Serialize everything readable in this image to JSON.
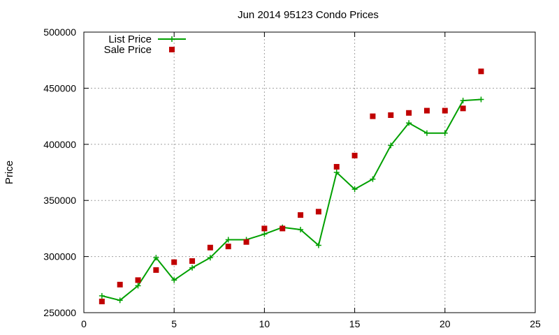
{
  "chart_data": {
    "type": "line",
    "title": "Jun 2014 95123 Condo Prices",
    "xlabel": "",
    "ylabel": "Price",
    "xlim": [
      0,
      25
    ],
    "ylim": [
      250000,
      500000
    ],
    "xticks": [
      0,
      5,
      10,
      15,
      20,
      25
    ],
    "yticks": [
      250000,
      300000,
      350000,
      400000,
      450000,
      500000
    ],
    "grid": true,
    "legend_position": "top-left",
    "series": [
      {
        "name": "List Price",
        "style": "line-plus",
        "color": "#00a000",
        "points": [
          [
            1,
            265000
          ],
          [
            2,
            261000
          ],
          [
            3,
            274000
          ],
          [
            4,
            299000
          ],
          [
            5,
            279000
          ],
          [
            6,
            290000
          ],
          [
            7,
            299000
          ],
          [
            8,
            315000
          ],
          [
            9,
            315000
          ],
          [
            10,
            320000
          ],
          [
            11,
            326000
          ],
          [
            12,
            324000
          ],
          [
            13,
            310000
          ],
          [
            14,
            375000
          ],
          [
            15,
            360000
          ],
          [
            16,
            369000
          ],
          [
            17,
            399000
          ],
          [
            18,
            419000
          ],
          [
            19,
            410000
          ],
          [
            20,
            410000
          ],
          [
            21,
            439000
          ],
          [
            22,
            440000
          ]
        ]
      },
      {
        "name": "Sale Price",
        "style": "square",
        "color": "#c00000",
        "points": [
          [
            1,
            260000
          ],
          [
            2,
            275000
          ],
          [
            3,
            279000
          ],
          [
            4,
            288000
          ],
          [
            5,
            295000
          ],
          [
            6,
            296000
          ],
          [
            7,
            308000
          ],
          [
            8,
            309000
          ],
          [
            9,
            313000
          ],
          [
            10,
            325000
          ],
          [
            11,
            325000
          ],
          [
            12,
            337000
          ],
          [
            13,
            340000
          ],
          [
            14,
            380000
          ],
          [
            15,
            390000
          ],
          [
            16,
            425000
          ],
          [
            17,
            426000
          ],
          [
            18,
            428000
          ],
          [
            19,
            430000
          ],
          [
            20,
            430000
          ],
          [
            21,
            432000
          ],
          [
            22,
            465000
          ]
        ]
      }
    ]
  }
}
